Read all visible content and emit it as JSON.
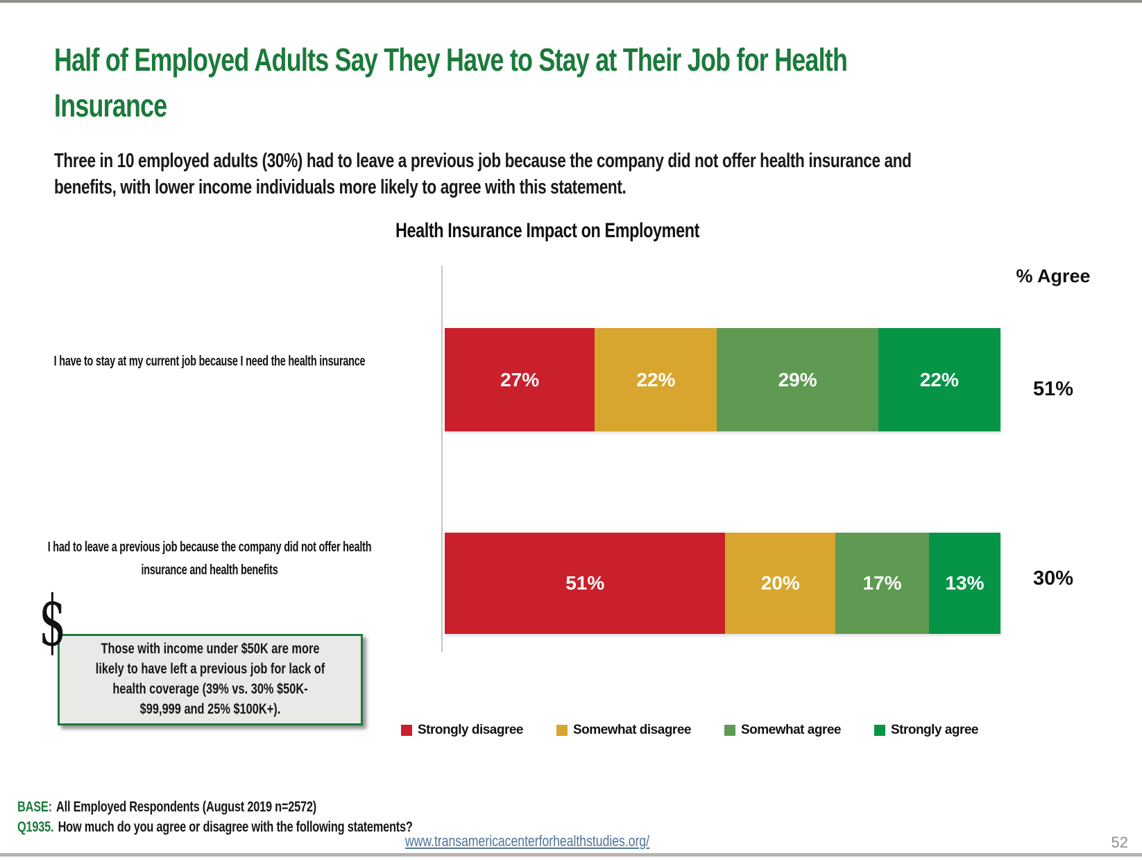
{
  "slide": {
    "title": "Half of Employed Adults Say They Have to Stay at Their Job for Health\nInsurance",
    "subtitle": "Three in 10 employed adults (30%) had to leave a previous job because the company did not offer health insurance and\nbenefits, with lower income individuals more likely to agree with this statement.",
    "callout": {
      "dollar_sign": "$",
      "text": "Those with income under $50K are more\nlikely to have left a previous job for lack of\nhealth coverage (39% vs. 30% $50K-\n$99,999 and 25% $100K+)."
    },
    "footer": {
      "base_label": "BASE:",
      "base_text": "All Employed Respondents (August 2019 n=2572)",
      "question_label": "Q1935.",
      "question_text": "How much do you agree or disagree with the following statements?",
      "link": "www.transamericacenterforhealthstudies.org/"
    },
    "page_number": "52",
    "accent_green": "#1a7a3a"
  },
  "chart_data": {
    "type": "bar",
    "orientation": "horizontal",
    "stacked": true,
    "title": "Health Insurance Impact on Employment",
    "agree_header": "% Agree",
    "categories": [
      "I have to stay at my current job because I need the health insurance",
      "I had to leave a previous job because the company did not offer health\ninsurance and health benefits"
    ],
    "series": [
      {
        "name": "Strongly disagree",
        "color": "#c9202c",
        "values": [
          27,
          51
        ]
      },
      {
        "name": "Somewhat disagree",
        "color": "#d8a62e",
        "values": [
          22,
          20
        ]
      },
      {
        "name": "Somewhat agree",
        "color": "#5f9a52",
        "values": [
          29,
          17
        ]
      },
      {
        "name": "Strongly agree",
        "color": "#069447",
        "values": [
          22,
          13
        ]
      }
    ],
    "value_label_suffix": "%",
    "agree_values": [
      "51%",
      "30%"
    ],
    "xlim": [
      0,
      100
    ],
    "legend_position": "bottom"
  }
}
